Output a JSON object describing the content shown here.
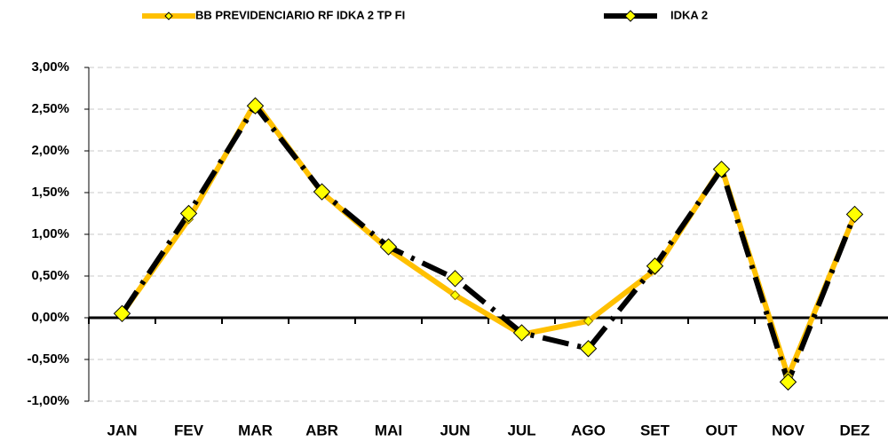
{
  "chart_data": {
    "type": "line",
    "categories": [
      "JAN",
      "FEV",
      "MAR",
      "ABR",
      "MAI",
      "JUN",
      "JUL",
      "AGO",
      "SET",
      "OUT",
      "NOV",
      "DEZ"
    ],
    "series": [
      {
        "name": "BB PREVIDENCIARIO RF IDKA 2 TP FI",
        "color": "#ffc000",
        "values": [
          0.05,
          1.18,
          2.58,
          1.5,
          0.82,
          0.27,
          -0.2,
          -0.04,
          0.57,
          1.8,
          -0.7,
          1.23
        ]
      },
      {
        "name": "IDKA 2",
        "color": "#000000",
        "values": [
          0.05,
          1.25,
          2.54,
          1.51,
          0.85,
          0.47,
          -0.18,
          -0.37,
          0.62,
          1.78,
          -0.77,
          1.24
        ]
      }
    ],
    "ylim": [
      -1,
      3
    ],
    "yticks": [
      {
        "value": -1,
        "label": "-1,00%"
      },
      {
        "value": -0.5,
        "label": "-0,50%"
      },
      {
        "value": 0,
        "label": "0,00%"
      },
      {
        "value": 0.5,
        "label": "0,50%"
      },
      {
        "value": 1,
        "label": "1,00%"
      },
      {
        "value": 1.5,
        "label": "1,50%"
      },
      {
        "value": 2,
        "label": "2,00%"
      },
      {
        "value": 2.5,
        "label": "2,50%"
      },
      {
        "value": 3,
        "label": "3,00%"
      }
    ],
    "grid": true
  }
}
